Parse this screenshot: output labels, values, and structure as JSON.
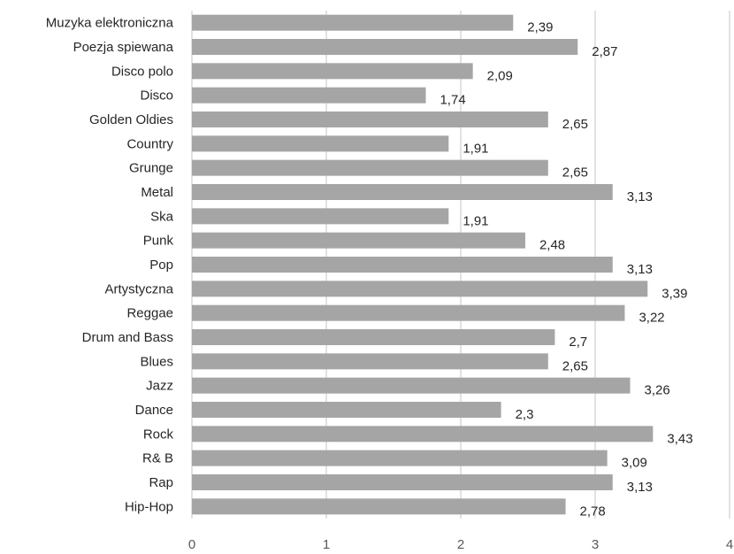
{
  "chart_data": {
    "type": "bar",
    "orientation": "horizontal",
    "categories": [
      "Muzyka elektroniczna",
      "Poezja spiewana",
      "Disco polo",
      "Disco",
      "Golden Oldies",
      "Country",
      "Grunge",
      "Metal",
      "Ska",
      "Punk",
      "Pop",
      "Artystyczna",
      "Reggae",
      "Drum and Bass",
      "Blues",
      "Jazz",
      "Dance",
      "Rock",
      "R& B",
      "Rap",
      "Hip-Hop"
    ],
    "values": [
      2.39,
      2.87,
      2.09,
      1.74,
      2.65,
      1.91,
      2.65,
      3.13,
      1.91,
      2.48,
      3.13,
      3.39,
      3.22,
      2.7,
      2.65,
      3.26,
      2.3,
      3.43,
      3.09,
      3.13,
      2.78
    ],
    "value_labels": [
      "2,39",
      "2,87",
      "2,09",
      "1,74",
      "2,65",
      "1,91",
      "2,65",
      "3,13",
      "1,91",
      "2,48",
      "3,13",
      "3,39",
      "3,22",
      "2,7",
      "2,65",
      "3,26",
      "2,3",
      "3,43",
      "3,09",
      "3,13",
      "2,78"
    ],
    "xlim": [
      0,
      4
    ],
    "xticks": [
      "0",
      "1",
      "2",
      "3",
      "4"
    ],
    "grid": "vertical",
    "title": "",
    "xlabel": "",
    "ylabel": "",
    "colors": {
      "bar": "#a5a5a5",
      "grid": "#d9d9d9",
      "text": "#262626",
      "tick": "#595959"
    }
  }
}
